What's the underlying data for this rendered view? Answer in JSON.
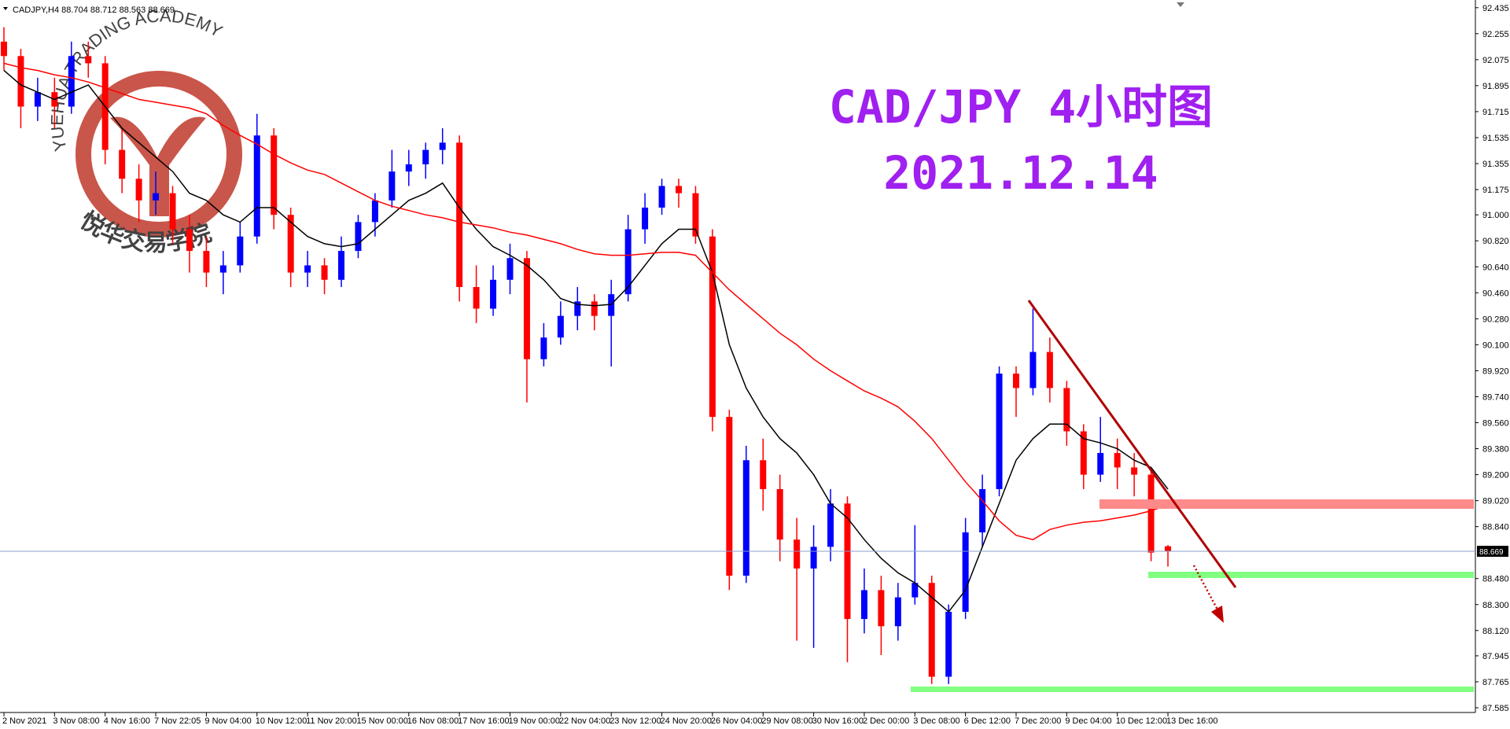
{
  "chart_data": {
    "type": "candlestick",
    "symbol": "CADJPY,H4",
    "title": "CAD/JPY 4小时图",
    "subtitle": "2021.12.14",
    "watermark": {
      "arc_text": "YUEHUA TRADING ACADEMY",
      "text": "悦华交易学院"
    },
    "up_color": "#0000ff",
    "down_color": "#ff0000",
    "ylim": [
      87.585,
      92.435
    ],
    "yticks": [
      92.435,
      92.255,
      92.075,
      91.895,
      91.715,
      91.535,
      91.355,
      91.175,
      {
        "value": 91.0,
        "label": "91.000"
      },
      {
        "value": 90.82,
        "label": "90.820"
      },
      {
        "value": 90.64,
        "label": "90.640"
      },
      {
        "value": 90.46,
        "label": "90.460"
      },
      {
        "value": 90.28,
        "label": "90.280"
      },
      {
        "value": 90.1,
        "label": "90.100"
      },
      {
        "value": 89.92,
        "label": "89.920"
      },
      {
        "value": 89.74,
        "label": "89.740"
      },
      {
        "value": 89.56,
        "label": "89.560"
      },
      {
        "value": 89.38,
        "label": "89.380"
      },
      {
        "value": 89.2,
        "label": "89.200"
      },
      {
        "value": 89.02,
        "label": "89.020"
      },
      {
        "value": 88.84,
        "label": "88.840"
      },
      {
        "value": 88.48,
        "label": "88.480"
      },
      {
        "value": 88.3,
        "label": "88.300"
      },
      {
        "value": 88.12,
        "label": "88.120"
      },
      87.945,
      87.765,
      87.585
    ],
    "categories": [
      "2 Nov 2021",
      null,
      null,
      "3 Nov 08:00",
      null,
      null,
      "4 Nov 16:00",
      null,
      null,
      "7 Nov 22:05",
      null,
      null,
      "9 Nov 04:00",
      null,
      null,
      "10 Nov 12:00",
      null,
      null,
      "11 Nov 20:00",
      null,
      null,
      "15 Nov 00:00",
      null,
      null,
      "16 Nov 08:00",
      null,
      null,
      "17 Nov 16:00",
      null,
      null,
      "19 Nov 00:00",
      null,
      null,
      "22 Nov 04:00",
      null,
      null,
      "23 Nov 12:00",
      null,
      null,
      "24 Nov 20:00",
      null,
      null,
      "26 Nov 04:00",
      null,
      null,
      "29 Nov 08:00",
      null,
      null,
      "30 Nov 16:00",
      null,
      null,
      "2 Dec 00:00",
      null,
      null,
      "3 Dec 08:00",
      null,
      null,
      "6 Dec 12:00",
      null,
      null,
      "7 Dec 20:00",
      null,
      null,
      "9 Dec 04:00",
      null,
      null,
      "10 Dec 12:00",
      null,
      null,
      "13 Dec 16:00"
    ],
    "candles": [
      [
        92.2,
        92.3,
        92.0,
        92.1
      ],
      [
        92.1,
        92.15,
        91.6,
        91.75
      ],
      [
        91.75,
        91.95,
        91.65,
        91.85
      ],
      [
        91.85,
        91.95,
        91.6,
        91.75
      ],
      [
        91.75,
        92.2,
        91.7,
        92.1
      ],
      [
        92.1,
        92.2,
        91.95,
        92.05
      ],
      [
        92.05,
        92.1,
        91.35,
        91.45
      ],
      [
        91.45,
        91.6,
        91.15,
        91.25
      ],
      [
        91.25,
        91.35,
        90.95,
        91.1
      ],
      [
        91.1,
        91.3,
        91.0,
        91.15
      ],
      [
        91.15,
        91.2,
        90.8,
        90.9
      ],
      [
        90.9,
        91.0,
        90.6,
        90.75
      ],
      [
        90.75,
        90.85,
        90.5,
        90.6
      ],
      [
        90.6,
        90.75,
        90.45,
        90.65
      ],
      [
        90.65,
        90.95,
        90.6,
        90.85
      ],
      [
        90.85,
        91.7,
        90.8,
        91.55
      ],
      [
        91.55,
        91.6,
        90.9,
        91.0
      ],
      [
        91.0,
        91.05,
        90.5,
        90.6
      ],
      [
        90.6,
        90.75,
        90.5,
        90.65
      ],
      [
        90.65,
        90.7,
        90.45,
        90.55
      ],
      [
        90.55,
        90.85,
        90.5,
        90.75
      ],
      [
        90.75,
        91.0,
        90.7,
        90.95
      ],
      [
        90.95,
        91.15,
        90.85,
        91.1
      ],
      [
        91.1,
        91.45,
        91.05,
        91.3
      ],
      [
        91.3,
        91.45,
        91.2,
        91.35
      ],
      [
        91.35,
        91.5,
        91.25,
        91.45
      ],
      [
        91.45,
        91.6,
        91.35,
        91.5
      ],
      [
        91.5,
        91.55,
        90.4,
        90.5
      ],
      [
        90.5,
        90.65,
        90.25,
        90.35
      ],
      [
        90.35,
        90.65,
        90.3,
        90.55
      ],
      [
        90.55,
        90.8,
        90.45,
        90.7
      ],
      [
        90.7,
        90.75,
        89.7,
        90.0
      ],
      [
        90.0,
        90.25,
        89.95,
        90.15
      ],
      [
        90.15,
        90.4,
        90.1,
        90.3
      ],
      [
        90.3,
        90.5,
        90.2,
        90.4
      ],
      [
        90.4,
        90.45,
        90.2,
        90.3
      ],
      [
        90.3,
        90.55,
        89.95,
        90.45
      ],
      [
        90.45,
        91.0,
        90.4,
        90.9
      ],
      [
        90.9,
        91.15,
        90.8,
        91.05
      ],
      [
        91.05,
        91.25,
        91.0,
        91.2
      ],
      [
        91.2,
        91.25,
        91.05,
        91.15
      ],
      [
        91.15,
        91.2,
        90.8,
        90.85
      ],
      [
        90.85,
        90.9,
        89.5,
        89.6
      ],
      [
        89.6,
        89.65,
        88.4,
        88.5
      ],
      [
        88.5,
        89.4,
        88.45,
        89.3
      ],
      [
        89.3,
        89.45,
        88.95,
        89.1
      ],
      [
        89.1,
        89.2,
        88.6,
        88.75
      ],
      [
        88.75,
        88.9,
        88.05,
        88.55
      ],
      [
        88.55,
        88.85,
        88.0,
        88.7
      ],
      [
        88.7,
        89.1,
        88.6,
        89.0
      ],
      [
        89.0,
        89.05,
        87.9,
        88.2
      ],
      [
        88.2,
        88.55,
        88.1,
        88.4
      ],
      [
        88.4,
        88.5,
        87.95,
        88.15
      ],
      [
        88.15,
        88.45,
        88.05,
        88.35
      ],
      [
        88.35,
        88.85,
        88.3,
        88.45
      ],
      [
        88.45,
        88.5,
        87.75,
        87.8
      ],
      [
        87.8,
        88.3,
        87.75,
        88.25
      ],
      [
        88.25,
        88.9,
        88.2,
        88.8
      ],
      [
        88.8,
        89.2,
        88.7,
        89.1
      ],
      [
        89.1,
        89.95,
        89.05,
        89.9
      ],
      [
        89.9,
        89.95,
        89.6,
        89.8
      ],
      [
        89.8,
        90.35,
        89.75,
        90.05
      ],
      [
        90.05,
        90.15,
        89.7,
        89.8
      ],
      [
        89.8,
        89.85,
        89.4,
        89.5
      ],
      [
        89.5,
        89.55,
        89.1,
        89.2
      ],
      [
        89.2,
        89.6,
        89.15,
        89.35
      ],
      [
        89.35,
        89.45,
        89.1,
        89.25
      ],
      [
        89.25,
        89.35,
        89.05,
        89.2
      ],
      [
        89.2,
        89.25,
        88.6,
        88.66
      ],
      [
        88.704,
        88.712,
        88.563,
        88.669
      ]
    ],
    "moving_averages": [
      {
        "color": "#000000",
        "values": [
          92.0,
          91.9,
          91.85,
          91.8,
          91.85,
          91.9,
          91.75,
          91.6,
          91.5,
          91.4,
          91.3,
          91.15,
          91.1,
          91.0,
          90.95,
          91.05,
          91.05,
          90.95,
          90.85,
          90.8,
          90.78,
          90.8,
          90.9,
          91.0,
          91.1,
          91.15,
          91.22,
          91.05,
          90.9,
          90.78,
          90.72,
          90.65,
          90.55,
          90.42,
          90.38,
          90.37,
          90.38,
          90.5,
          90.65,
          90.8,
          90.9,
          90.9,
          90.6,
          90.1,
          89.8,
          89.6,
          89.45,
          89.35,
          89.2,
          89.0,
          88.9,
          88.75,
          88.62,
          88.52,
          88.45,
          88.35,
          88.25,
          88.4,
          88.7,
          89.0,
          89.3,
          89.45,
          89.55,
          89.55,
          89.45,
          89.42,
          89.38,
          89.3,
          89.25,
          89.1
        ]
      },
      {
        "color": "#ff0000",
        "values": [
          92.05,
          92.02,
          92.0,
          91.97,
          91.95,
          91.92,
          91.88,
          91.84,
          91.8,
          91.78,
          91.76,
          91.74,
          91.7,
          91.62,
          91.55,
          91.49,
          91.42,
          91.36,
          91.31,
          91.28,
          91.22,
          91.16,
          91.1,
          91.06,
          91.03,
          91.0,
          90.98,
          90.95,
          90.93,
          90.91,
          90.88,
          90.86,
          90.83,
          90.8,
          90.76,
          90.73,
          90.72,
          90.72,
          90.73,
          90.74,
          90.74,
          90.72,
          90.6,
          90.48,
          90.38,
          90.28,
          90.18,
          90.1,
          90.0,
          89.92,
          89.85,
          89.78,
          89.73,
          89.67,
          89.57,
          89.45,
          89.3,
          89.15,
          89.02,
          88.88,
          88.78,
          88.75,
          88.82,
          88.85,
          88.87,
          88.88,
          88.9,
          88.92,
          88.95,
          88.99
        ]
      }
    ],
    "grid": false
  }
}
